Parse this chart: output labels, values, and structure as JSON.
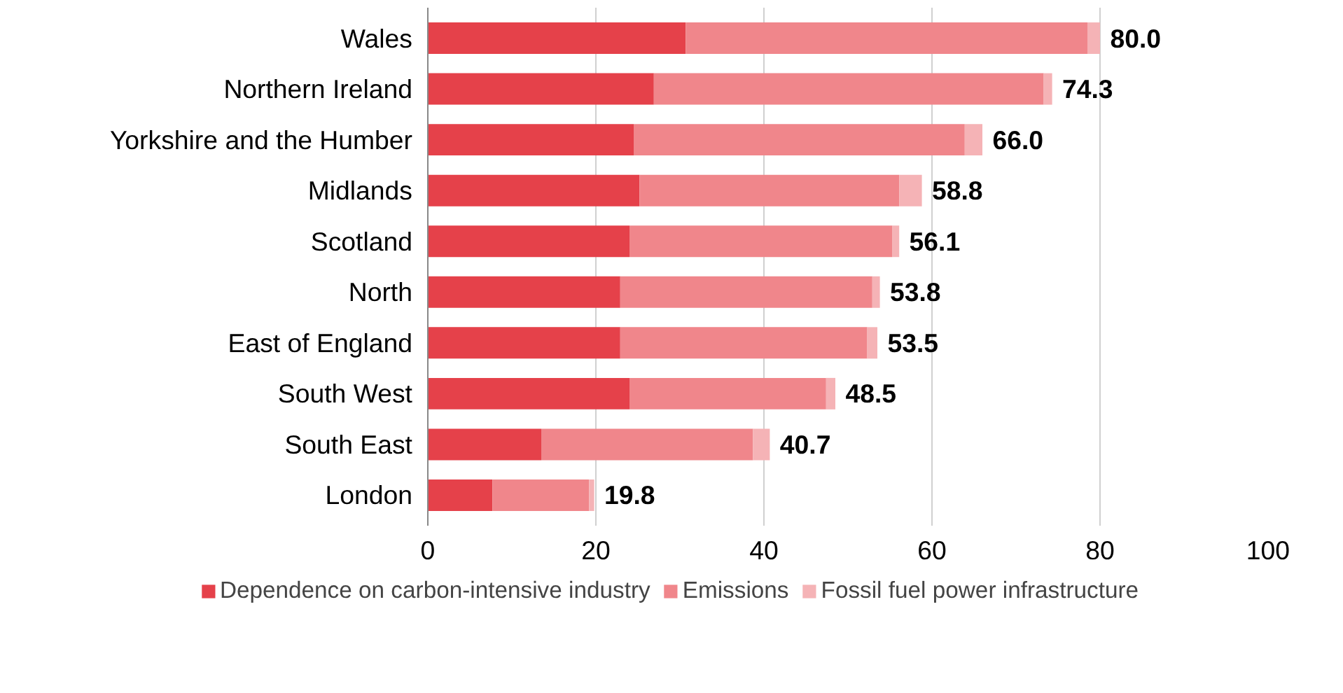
{
  "chart_data": {
    "type": "bar",
    "orientation": "horizontal",
    "stacked": true,
    "categories": [
      "Wales",
      "Northern Ireland",
      "Yorkshire and the Humber",
      "Midlands",
      "Scotland",
      "North",
      "East of England",
      "South West",
      "South East",
      "London"
    ],
    "series": [
      {
        "name": "Dependence on carbon-intensive industry",
        "color": "#e5414a",
        "values": [
          30.7,
          26.9,
          24.5,
          25.2,
          24.0,
          22.9,
          22.9,
          24.0,
          13.5,
          7.7
        ]
      },
      {
        "name": "Emissions",
        "color": "#f0868b",
        "values": [
          47.8,
          46.4,
          39.4,
          30.9,
          31.3,
          30.0,
          29.4,
          23.4,
          25.2,
          11.5
        ]
      },
      {
        "name": "Fossil fuel power infrastructure",
        "color": "#f5b3b6",
        "values": [
          1.5,
          1.0,
          2.1,
          2.7,
          0.8,
          0.9,
          1.2,
          1.1,
          2.0,
          0.6
        ]
      }
    ],
    "totals": [
      "80.0",
      "74.3",
      "66.0",
      "58.8",
      "56.1",
      "53.8",
      "53.5",
      "48.5",
      "40.7",
      "19.8"
    ],
    "xlim": [
      0,
      100
    ],
    "xticks": [
      0,
      20,
      40,
      60,
      80,
      100
    ],
    "grid": "x",
    "legend": "bottom"
  }
}
